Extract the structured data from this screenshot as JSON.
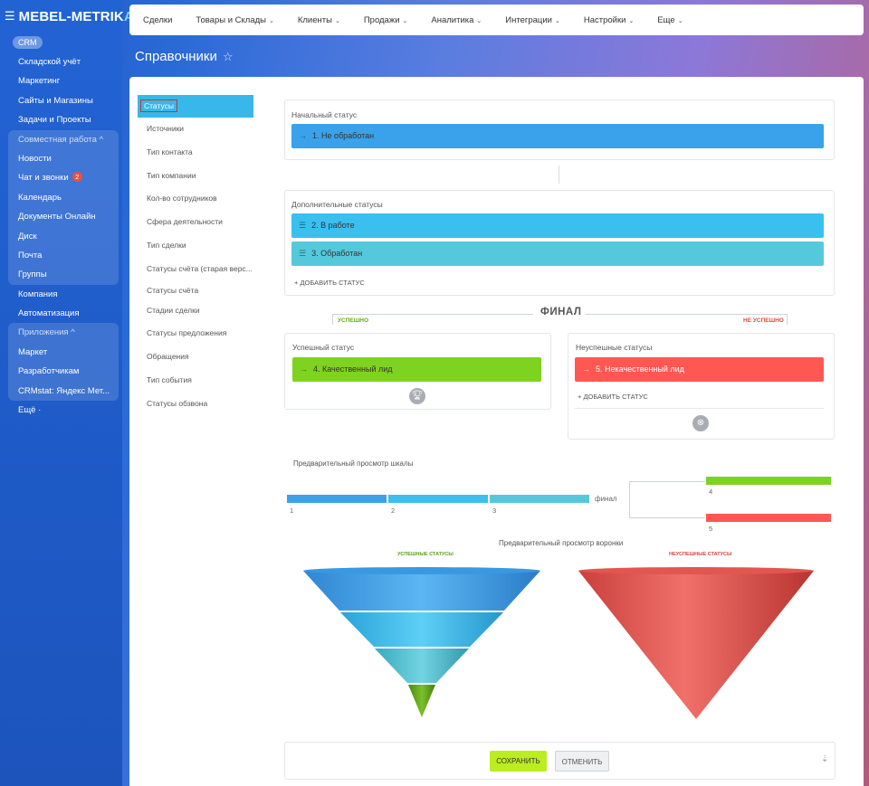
{
  "sidebar": {
    "logo_main": "MEBEL-METRIK",
    "logo_end": "A",
    "crm_label": "CRM",
    "items_top": [
      "Складской учёт",
      "Маркетинг",
      "Сайты и Магазины",
      "Задачи и Проекты"
    ],
    "group1": {
      "head": "Совместная работа ^",
      "items": [
        "Новости",
        "Чат и звонки",
        "Календарь",
        "Документы Онлайн",
        "Диск",
        "Почта",
        "Группы"
      ],
      "chat_badge": "2"
    },
    "items_mid": [
      "Компания",
      "Автоматизация"
    ],
    "group2": {
      "head": "Приложения ^",
      "items": [
        "Маркет",
        "Разработчикам",
        "CRMstat: Яндекс Мет..."
      ]
    },
    "more": "Ещё ·"
  },
  "topbar": {
    "items": [
      "Сделки",
      "Товары и Склады",
      "Клиенты",
      "Продажи",
      "Аналитика",
      "Интеграции",
      "Настройки",
      "Еще"
    ]
  },
  "page": {
    "title": "Справочники"
  },
  "menu": {
    "items": [
      "Статусы",
      "Источники",
      "Тип контакта",
      "Тип компании",
      "Кол-во сотрудников",
      "Сфера деятельности",
      "Тип сделки",
      "Статусы счёта (старая верс...",
      "Статусы счёта",
      "Стадии сделки",
      "Статусы предложения",
      "Обращения",
      "Тип события",
      "Статусы обзвона"
    ]
  },
  "statuses": {
    "initial_label": "Начальный статус",
    "initial": "1. Не обработан",
    "additional_label": "Дополнительные статусы",
    "additional": [
      "2. В работе",
      "3. Обработан"
    ],
    "add_status": "+ ДОБАВИТЬ СТАТУС",
    "final_title": "ФИНАЛ",
    "success_tag": "УСПЕШНО",
    "fail_tag": "НЕ УСПЕШНО",
    "success_label": "Успешный статус",
    "success": "4. Качественный лид",
    "fail_label": "Неуспешные статусы",
    "fail": "5. Некачественный лид"
  },
  "preview": {
    "scale_label": "Предварительный просмотр шкалы",
    "final_word": "финал",
    "ticks": [
      "1",
      "2",
      "3",
      "4",
      "5"
    ],
    "funnel_label": "Предварительный просмотр воронки",
    "success_caption": "УСПЕШНЫЕ СТАТУСЫ",
    "fail_caption": "НЕУСПЕШНЫЕ СТАТУСЫ"
  },
  "actions": {
    "save": "СОХРАНИТЬ",
    "cancel": "ОТМЕНИТЬ"
  },
  "colors": {
    "status1": "#3aa2ea",
    "status2": "#39c0ef",
    "status3": "#55c9dc",
    "success": "#7ed321",
    "fail": "#ff5752",
    "save": "#bbed21"
  }
}
